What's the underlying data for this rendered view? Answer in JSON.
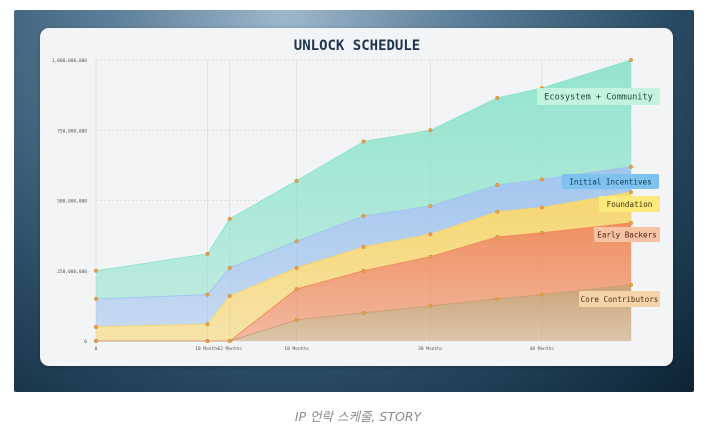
{
  "caption": "IP 언락 스케줄, STORY",
  "chart_data": {
    "type": "area",
    "stacked": true,
    "title": "UNLOCK SCHEDULE",
    "xlabel": "",
    "ylabel": "",
    "x": [
      0,
      10,
      12,
      18,
      24,
      30,
      36,
      40,
      48
    ],
    "xlim": [
      0,
      48
    ],
    "ylim": [
      0,
      1000000000
    ],
    "x_ticks": [
      {
        "value": 0,
        "label": "0"
      },
      {
        "value": 10,
        "label": "10 Months"
      },
      {
        "value": 12,
        "label": "12 Months"
      },
      {
        "value": 18,
        "label": "18 Months"
      },
      {
        "value": 30,
        "label": "30 Months"
      },
      {
        "value": 40,
        "label": "40 Months"
      }
    ],
    "y_ticks": [
      {
        "value": 0,
        "label": "0"
      },
      {
        "value": 250000000,
        "label": "250,000,000"
      },
      {
        "value": 500000000,
        "label": "500,000,000"
      },
      {
        "value": 750000000,
        "label": "750,000,000"
      },
      {
        "value": 1000000000,
        "label": "1,000,000,000"
      }
    ],
    "grid": true,
    "series": [
      {
        "name": "Core Contributors",
        "color": "#c9a070",
        "values": [
          0,
          0,
          0,
          75000000,
          100000000,
          125000000,
          150000000,
          165000000,
          200000000
        ]
      },
      {
        "name": "Early Backers",
        "color": "#f08a5a",
        "values": [
          0,
          0,
          0,
          110000000,
          150000000,
          175000000,
          220000000,
          220000000,
          220000000
        ]
      },
      {
        "name": "Foundation",
        "color": "#f7d56a",
        "values": [
          50000000,
          60000000,
          160000000,
          75000000,
          85000000,
          80000000,
          90000000,
          90000000,
          110000000
        ]
      },
      {
        "name": "Initial Incentives",
        "color": "#9fc3ee",
        "values": [
          100000000,
          105000000,
          100000000,
          95000000,
          110000000,
          100000000,
          95000000,
          100000000,
          90000000
        ]
      },
      {
        "name": "Ecosystem + Community",
        "color": "#8ee3cc",
        "values": [
          100000000,
          145000000,
          175000000,
          215000000,
          265000000,
          270000000,
          310000000,
          325000000,
          380000000
        ]
      }
    ]
  }
}
